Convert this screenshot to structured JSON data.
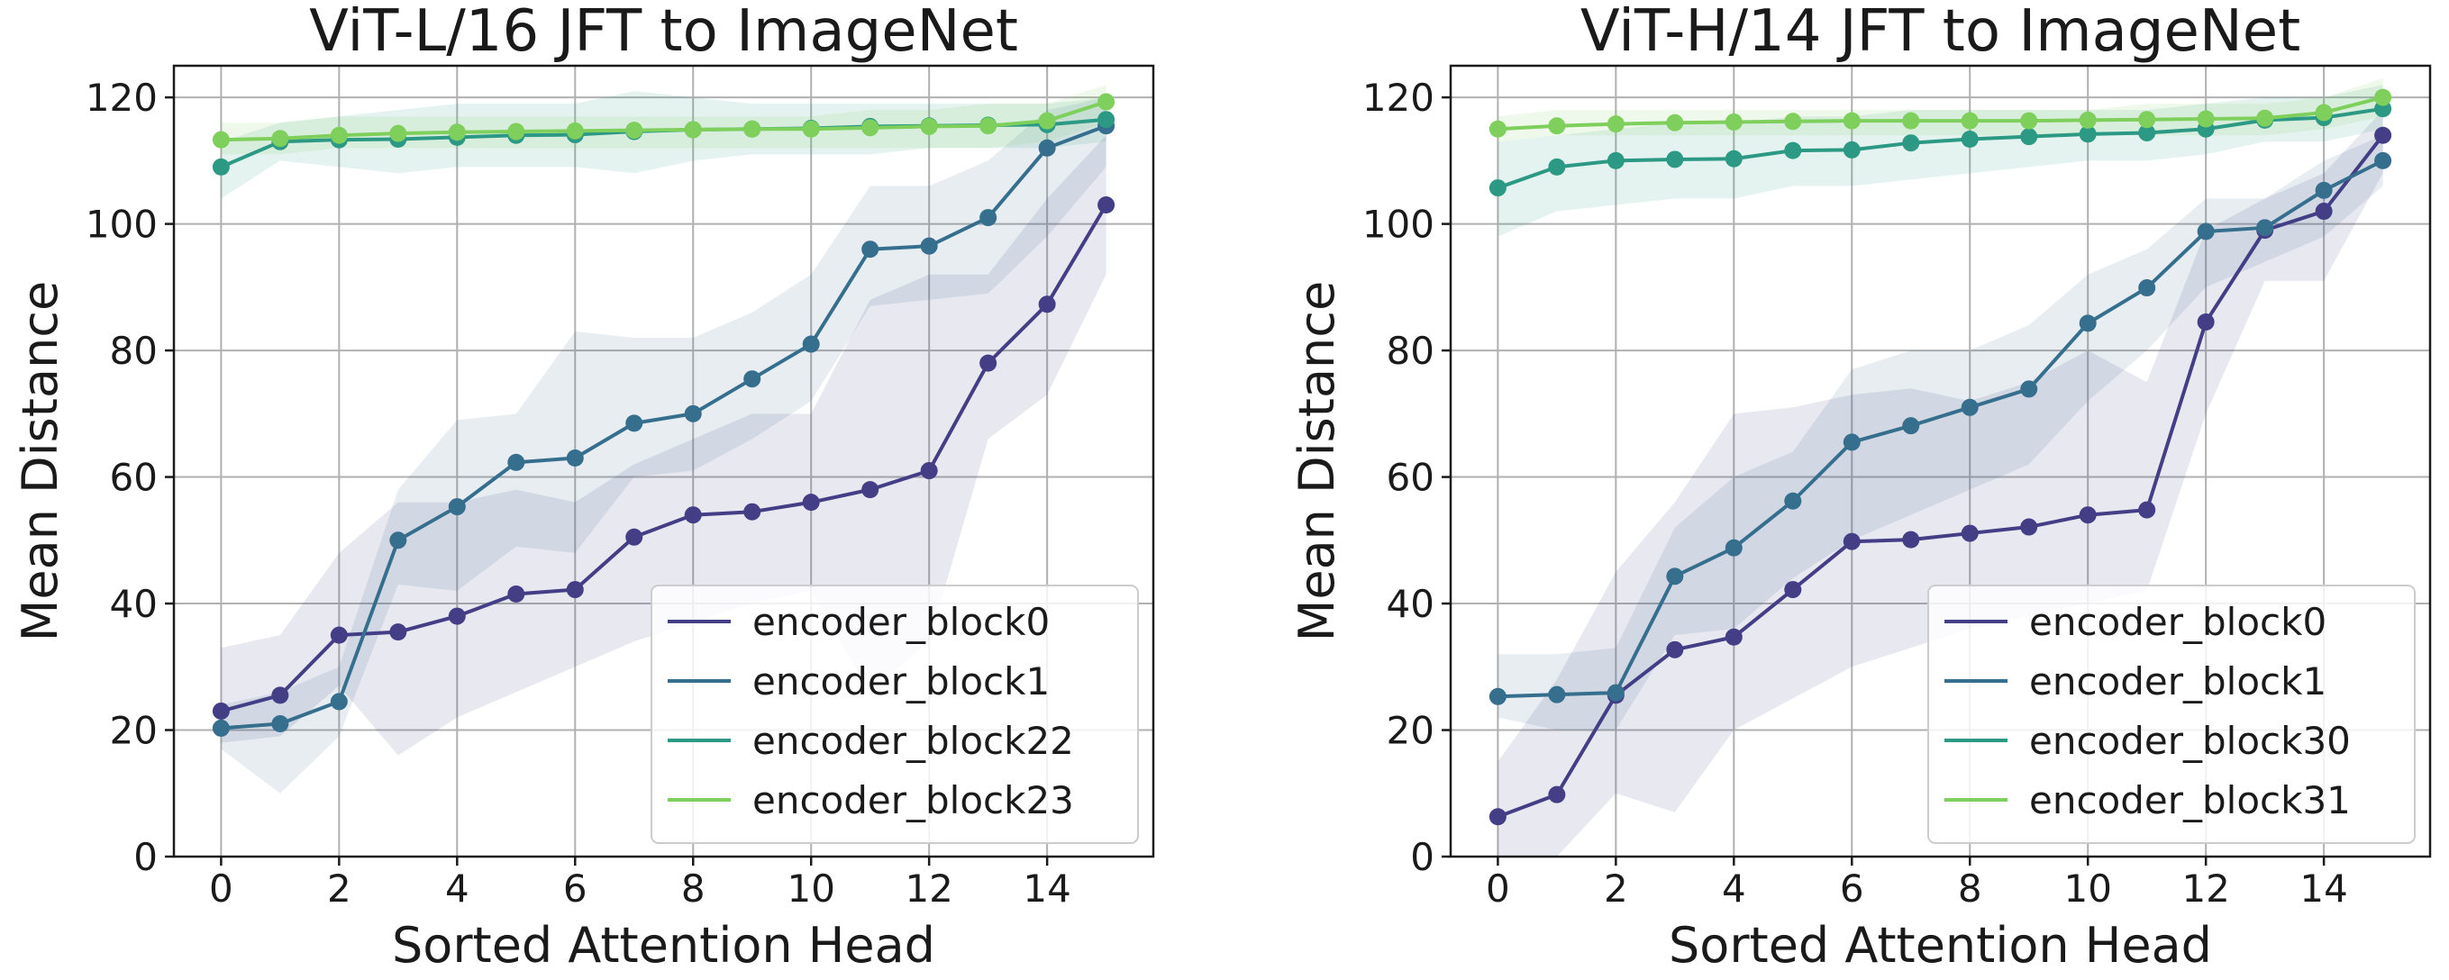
{
  "chart_data": [
    {
      "type": "line",
      "title": "ViT-L/16 JFT to ImageNet",
      "xlabel": "Sorted Attention Head",
      "ylabel": "Mean Distance",
      "xlim": [
        -0.8,
        15.8
      ],
      "ylim": [
        0,
        125
      ],
      "xticks": [
        0,
        2,
        4,
        6,
        8,
        10,
        12,
        14
      ],
      "yticks": [
        0,
        20,
        40,
        60,
        80,
        100,
        120
      ],
      "grid": true,
      "legend_position": "lower-right",
      "x": [
        0,
        1,
        2,
        3,
        4,
        5,
        6,
        7,
        8,
        9,
        10,
        11,
        12,
        13,
        14,
        15
      ],
      "series": [
        {
          "name": "encoder_block0",
          "color": "#433e85",
          "values": [
            23,
            25.5,
            35,
            35.5,
            38,
            41.5,
            42.2,
            50.5,
            54,
            54.5,
            56,
            58,
            61,
            78,
            87.3,
            103
          ],
          "band_low": [
            18,
            19,
            27,
            16,
            22,
            26,
            30,
            34,
            37,
            40,
            42,
            26,
            34,
            66,
            73,
            92
          ],
          "band_high": [
            33,
            35,
            48,
            56,
            56,
            58,
            56,
            62,
            66,
            70,
            70,
            88,
            92,
            92,
            104,
            114
          ]
        },
        {
          "name": "encoder_block1",
          "color": "#366e8e",
          "values": [
            20.3,
            21,
            24.5,
            50,
            55.3,
            62.3,
            63,
            68.5,
            70,
            75.5,
            81,
            96,
            96.5,
            101,
            112,
            115.5
          ],
          "band_low": [
            17,
            10,
            19,
            43,
            42,
            49,
            48,
            60,
            61,
            66,
            72,
            87,
            88,
            89,
            98,
            109
          ],
          "band_high": [
            24,
            26,
            30,
            58,
            69,
            70,
            83,
            82,
            82,
            86,
            92,
            106,
            106,
            110,
            118,
            120
          ]
        },
        {
          "name": "encoder_block22",
          "color": "#2c9984",
          "values": [
            109,
            113,
            113.3,
            113.4,
            113.7,
            114,
            114.1,
            114.6,
            114.9,
            115,
            115.1,
            115.4,
            115.5,
            115.6,
            115.7,
            116.5
          ],
          "band_low": [
            104,
            110,
            109,
            108,
            109,
            109,
            109,
            108,
            110,
            111,
            111,
            111,
            112,
            112,
            112,
            113
          ],
          "band_high": [
            113,
            116,
            117,
            118,
            119,
            119,
            119,
            121,
            120,
            119,
            119,
            119,
            119,
            119,
            119,
            120
          ]
        },
        {
          "name": "encoder_block23",
          "color": "#7ecf5b",
          "values": [
            113.3,
            113.5,
            114,
            114.3,
            114.5,
            114.6,
            114.7,
            114.8,
            114.9,
            115,
            115,
            115.2,
            115.4,
            115.5,
            116.3,
            119.3
          ],
          "band_low": [
            111,
            111,
            112,
            112,
            112,
            112,
            112,
            112,
            112,
            112,
            112,
            112,
            112,
            112,
            113,
            116
          ],
          "band_high": [
            116,
            116,
            117,
            117,
            117,
            117,
            117,
            117,
            117,
            117,
            117,
            118,
            118,
            119,
            119,
            122
          ]
        }
      ]
    },
    {
      "type": "line",
      "title": "ViT-H/14 JFT to ImageNet",
      "xlabel": "Sorted Attention Head",
      "ylabel": "Mean Distance",
      "xlim": [
        -0.8,
        15.8
      ],
      "ylim": [
        0,
        125
      ],
      "xticks": [
        0,
        2,
        4,
        6,
        8,
        10,
        12,
        14
      ],
      "yticks": [
        0,
        20,
        40,
        60,
        80,
        100,
        120
      ],
      "grid": true,
      "legend_position": "lower-right",
      "x": [
        0,
        1,
        2,
        3,
        4,
        5,
        6,
        7,
        8,
        9,
        10,
        11,
        12,
        13,
        14,
        15
      ],
      "series": [
        {
          "name": "encoder_block0",
          "color": "#433e85",
          "values": [
            6.3,
            9.8,
            25.5,
            32.7,
            34.7,
            42.2,
            49.8,
            50.1,
            51.1,
            52.1,
            54,
            54.8,
            84.5,
            99,
            102,
            114
          ],
          "band_low": [
            0,
            0,
            10,
            7,
            20,
            25,
            30,
            33,
            36,
            38,
            40,
            42,
            70,
            91,
            91,
            108
          ],
          "band_high": [
            15,
            28,
            45,
            56,
            70,
            71,
            73,
            74,
            72,
            75,
            80,
            75,
            99,
            104,
            108,
            118
          ]
        },
        {
          "name": "encoder_block1",
          "color": "#366e8e",
          "values": [
            25.3,
            25.6,
            25.9,
            44.3,
            48.8,
            56.2,
            65.5,
            68.1,
            71,
            73.9,
            84.3,
            89.9,
            98.8,
            99.4,
            105.3,
            110
          ],
          "band_low": [
            22,
            20,
            20,
            35,
            36,
            44,
            50,
            54,
            58,
            62,
            72,
            80,
            90,
            94,
            98,
            106
          ],
          "band_high": [
            32,
            32,
            33,
            52,
            60,
            64,
            77,
            80,
            80,
            84,
            92,
            96,
            104,
            104,
            110,
            114
          ]
        },
        {
          "name": "encoder_block30",
          "color": "#2c9984",
          "values": [
            105.7,
            109,
            110,
            110.2,
            110.3,
            111.6,
            111.7,
            112.8,
            113.4,
            113.8,
            114.2,
            114.4,
            115,
            116.4,
            116.8,
            118.2
          ],
          "band_low": [
            98,
            102,
            103,
            104,
            104,
            106,
            106,
            107,
            108,
            109,
            110,
            110,
            111,
            113,
            113,
            115
          ],
          "band_high": [
            113,
            114,
            115,
            116,
            116,
            117,
            117,
            118,
            118,
            118,
            118,
            118,
            119,
            120,
            120,
            122
          ]
        },
        {
          "name": "encoder_block31",
          "color": "#7ecf5b",
          "values": [
            115,
            115.5,
            115.8,
            116,
            116.1,
            116.2,
            116.3,
            116.3,
            116.3,
            116.3,
            116.4,
            116.5,
            116.6,
            116.7,
            117.6,
            120
          ],
          "band_low": [
            113,
            114,
            114,
            114,
            114,
            114,
            114,
            114,
            114,
            114,
            114,
            114,
            114,
            114,
            115,
            117
          ],
          "band_high": [
            117,
            118,
            118,
            118,
            118,
            118,
            118,
            118,
            118,
            118,
            118,
            119,
            119,
            119,
            120,
            123
          ]
        }
      ]
    }
  ]
}
